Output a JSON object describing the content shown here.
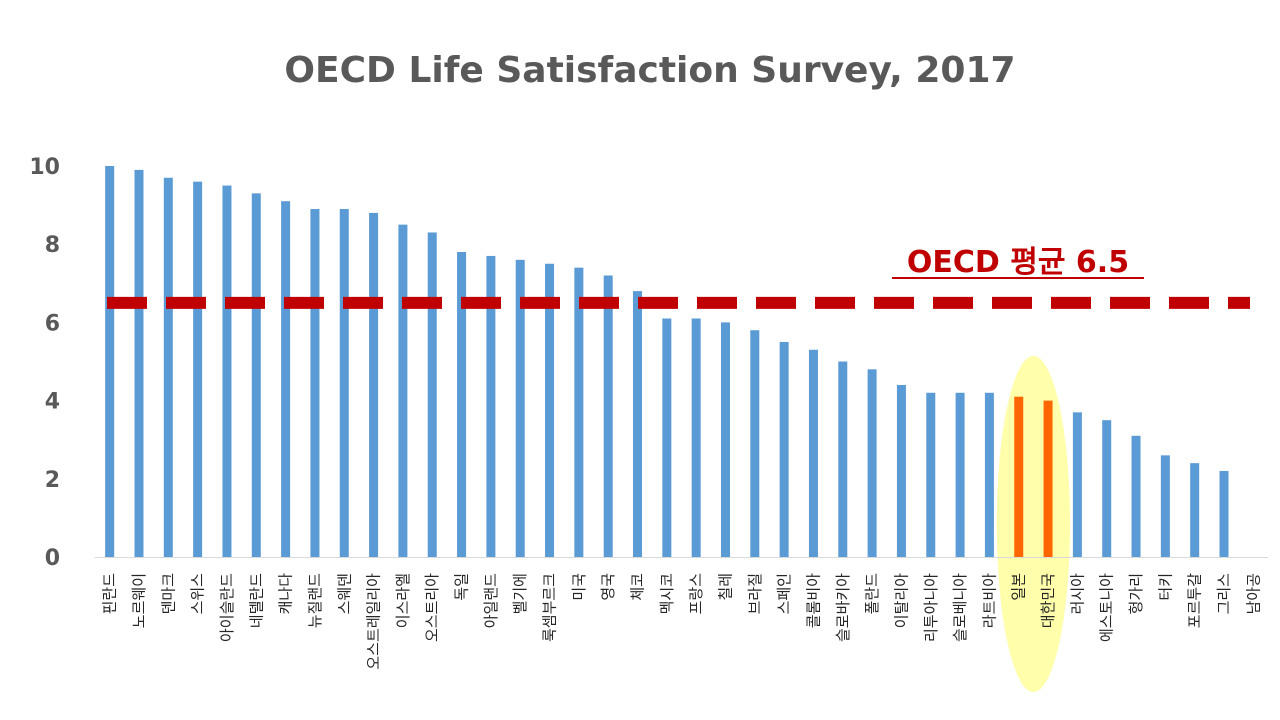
{
  "chart_data": {
    "type": "bar",
    "title": "OECD Life Satisfaction Survey, 2017",
    "xlabel": "",
    "ylabel": "",
    "ylim": [
      0,
      10
    ],
    "yticks": [
      "0",
      "2",
      "4",
      "6",
      "8",
      "10"
    ],
    "grid": false,
    "categories": [
      "핀란드",
      "노르웨이",
      "덴마크",
      "스위스",
      "아이슬란드",
      "네델란드",
      "캐나다",
      "뉴질랜드",
      "스웨덴",
      "오스트레일리아",
      "이스라엘",
      "오스트리아",
      "독일",
      "아일랜드",
      "벨기에",
      "룩셈부르크",
      "미국",
      "영국",
      "체코",
      "멕시코",
      "프랑스",
      "칠레",
      "브라질",
      "스페인",
      "콜롬비아",
      "슬로바키아",
      "폴란드",
      "이탈리아",
      "리투아니아",
      "슬로베니아",
      "라트비아",
      "일본",
      "대한민국",
      "러시아",
      "에스토니아",
      "헝가리",
      "터키",
      "포르투갈",
      "그리스",
      "남아공"
    ],
    "values": [
      10.0,
      9.9,
      9.7,
      9.6,
      9.5,
      9.3,
      9.1,
      8.9,
      8.9,
      8.8,
      8.5,
      8.3,
      7.8,
      7.7,
      7.6,
      7.5,
      7.4,
      7.2,
      6.8,
      6.1,
      6.1,
      6.0,
      5.8,
      5.5,
      5.3,
      5.0,
      4.8,
      4.4,
      4.2,
      4.2,
      4.2,
      4.1,
      4.0,
      3.7,
      3.5,
      3.1,
      2.6,
      2.4,
      2.2,
      0
    ],
    "highlighted": [
      "일본",
      "대한민국"
    ],
    "reference_line": {
      "value": 6.5,
      "label": "OECD 평균 6.5"
    },
    "colors": {
      "bar": "#5b9bd5",
      "highlight_bar": "#ff6600",
      "highlight_ellipse": "#ffff66",
      "reference_line": "#c00000",
      "title": "#595959",
      "tick": "#595959",
      "axis": "#d9d9d9"
    }
  }
}
